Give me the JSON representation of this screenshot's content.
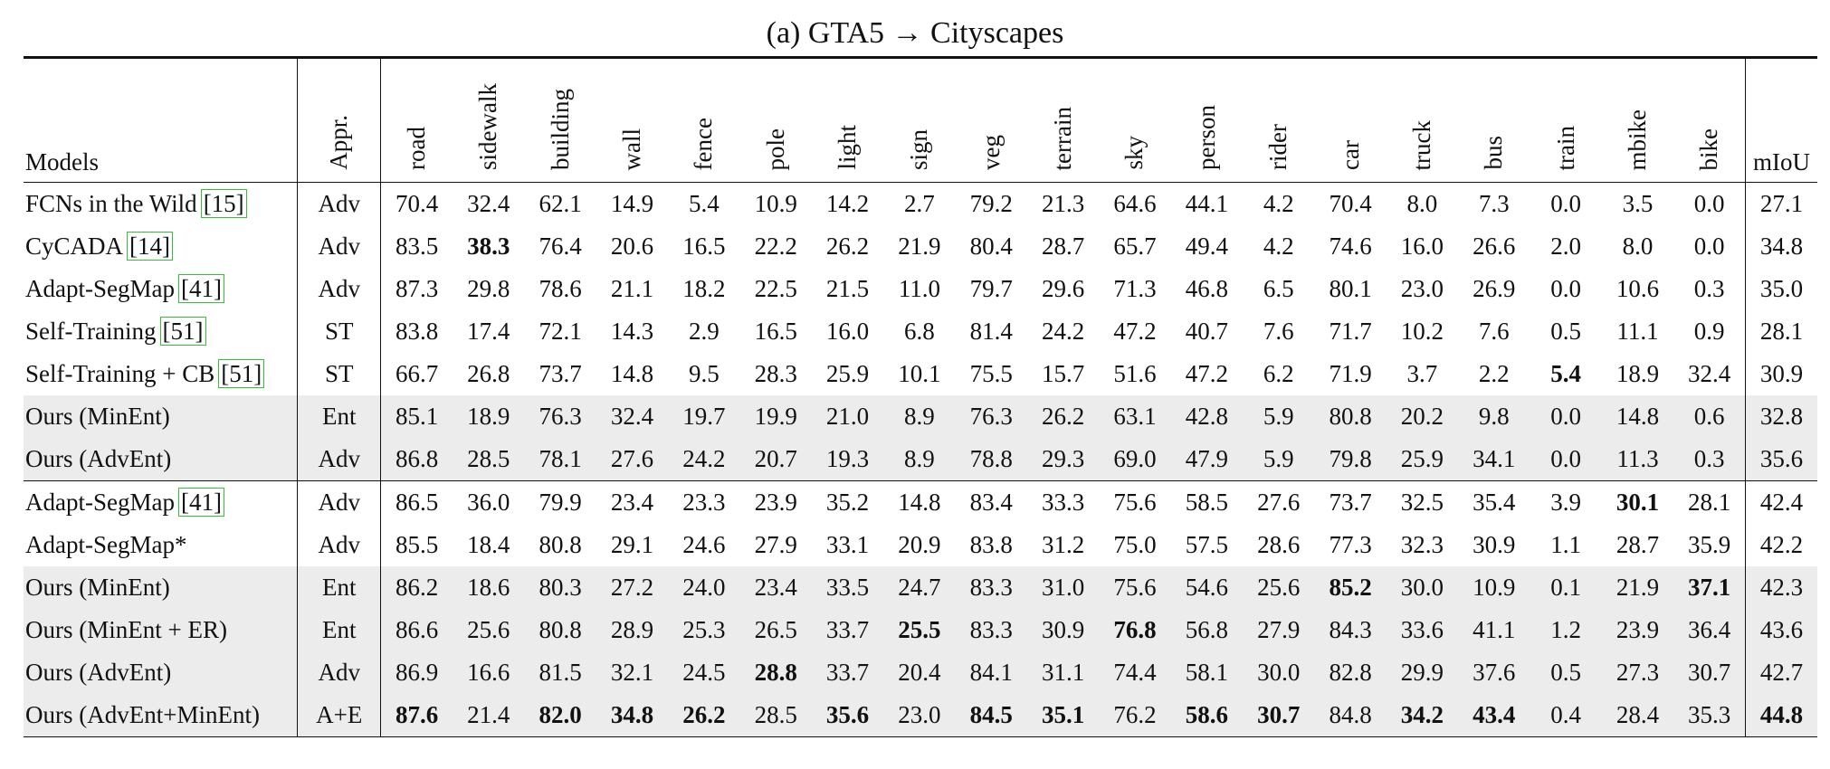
{
  "caption": "(a) GTA5 → Cityscapes",
  "headers": {
    "models": "Models",
    "appr": "Appr.",
    "classes": [
      "road",
      "sidewalk",
      "building",
      "wall",
      "fence",
      "pole",
      "light",
      "sign",
      "veg",
      "terrain",
      "sky",
      "person",
      "rider",
      "car",
      "truck",
      "bus",
      "train",
      "mbike",
      "bike"
    ],
    "miou": "mIoU"
  },
  "rows": [
    {
      "model": "FCNs in the Wild",
      "ref": "[15]",
      "appr": "Adv",
      "values": [
        "70.4",
        "32.4",
        "62.1",
        "14.9",
        "5.4",
        "10.9",
        "14.2",
        "2.7",
        "79.2",
        "21.3",
        "64.6",
        "44.1",
        "4.2",
        "70.4",
        "8.0",
        "7.3",
        "0.0",
        "3.5",
        "0.0"
      ],
      "miou": "27.1",
      "bold": [],
      "shaded": false
    },
    {
      "model": "CyCADA",
      "ref": "[14]",
      "appr": "Adv",
      "values": [
        "83.5",
        "38.3",
        "76.4",
        "20.6",
        "16.5",
        "22.2",
        "26.2",
        "21.9",
        "80.4",
        "28.7",
        "65.7",
        "49.4",
        "4.2",
        "74.6",
        "16.0",
        "26.6",
        "2.0",
        "8.0",
        "0.0"
      ],
      "miou": "34.8",
      "bold": [
        1
      ],
      "shaded": false
    },
    {
      "model": "Adapt-SegMap",
      "ref": "[41]",
      "appr": "Adv",
      "values": [
        "87.3",
        "29.8",
        "78.6",
        "21.1",
        "18.2",
        "22.5",
        "21.5",
        "11.0",
        "79.7",
        "29.6",
        "71.3",
        "46.8",
        "6.5",
        "80.1",
        "23.0",
        "26.9",
        "0.0",
        "10.6",
        "0.3"
      ],
      "miou": "35.0",
      "bold": [],
      "shaded": false
    },
    {
      "model": "Self-Training",
      "ref": "[51]",
      "appr": "ST",
      "values": [
        "83.8",
        "17.4",
        "72.1",
        "14.3",
        "2.9",
        "16.5",
        "16.0",
        "6.8",
        "81.4",
        "24.2",
        "47.2",
        "40.7",
        "7.6",
        "71.7",
        "10.2",
        "7.6",
        "0.5",
        "11.1",
        "0.9"
      ],
      "miou": "28.1",
      "bold": [],
      "shaded": false
    },
    {
      "model": "Self-Training + CB",
      "ref": "[51]",
      "appr": "ST",
      "values": [
        "66.7",
        "26.8",
        "73.7",
        "14.8",
        "9.5",
        "28.3",
        "25.9",
        "10.1",
        "75.5",
        "15.7",
        "51.6",
        "47.2",
        "6.2",
        "71.9",
        "3.7",
        "2.2",
        "5.4",
        "18.9",
        "32.4"
      ],
      "miou": "30.9",
      "bold": [
        16
      ],
      "shaded": false
    },
    {
      "model": "Ours (MinEnt)",
      "ref": "",
      "appr": "Ent",
      "values": [
        "85.1",
        "18.9",
        "76.3",
        "32.4",
        "19.7",
        "19.9",
        "21.0",
        "8.9",
        "76.3",
        "26.2",
        "63.1",
        "42.8",
        "5.9",
        "80.8",
        "20.2",
        "9.8",
        "0.0",
        "14.8",
        "0.6"
      ],
      "miou": "32.8",
      "bold": [],
      "shaded": true
    },
    {
      "model": "Ours (AdvEnt)",
      "ref": "",
      "appr": "Adv",
      "values": [
        "86.8",
        "28.5",
        "78.1",
        "27.6",
        "24.2",
        "20.7",
        "19.3",
        "8.9",
        "78.8",
        "29.3",
        "69.0",
        "47.9",
        "5.9",
        "79.8",
        "25.9",
        "34.1",
        "0.0",
        "11.3",
        "0.3"
      ],
      "miou": "35.6",
      "bold": [],
      "shaded": true
    },
    {
      "model": "Adapt-SegMap",
      "ref": "[41]",
      "appr": "Adv",
      "values": [
        "86.5",
        "36.0",
        "79.9",
        "23.4",
        "23.3",
        "23.9",
        "35.2",
        "14.8",
        "83.4",
        "33.3",
        "75.6",
        "58.5",
        "27.6",
        "73.7",
        "32.5",
        "35.4",
        "3.9",
        "30.1",
        "28.1"
      ],
      "miou": "42.4",
      "bold": [
        17
      ],
      "shaded": false,
      "sep": true
    },
    {
      "model": "Adapt-SegMap*",
      "ref": "",
      "appr": "Adv",
      "values": [
        "85.5",
        "18.4",
        "80.8",
        "29.1",
        "24.6",
        "27.9",
        "33.1",
        "20.9",
        "83.8",
        "31.2",
        "75.0",
        "57.5",
        "28.6",
        "77.3",
        "32.3",
        "30.9",
        "1.1",
        "28.7",
        "35.9"
      ],
      "miou": "42.2",
      "bold": [],
      "shaded": false
    },
    {
      "model": "Ours (MinEnt)",
      "ref": "",
      "appr": "Ent",
      "values": [
        "86.2",
        "18.6",
        "80.3",
        "27.2",
        "24.0",
        "23.4",
        "33.5",
        "24.7",
        "83.3",
        "31.0",
        "75.6",
        "54.6",
        "25.6",
        "85.2",
        "30.0",
        "10.9",
        "0.1",
        "21.9",
        "37.1"
      ],
      "miou": "42.3",
      "bold": [
        13,
        18
      ],
      "shaded": true
    },
    {
      "model": "Ours (MinEnt + ER)",
      "ref": "",
      "appr": "Ent",
      "values": [
        "86.6",
        "25.6",
        "80.8",
        "28.9",
        "25.3",
        "26.5",
        "33.7",
        "25.5",
        "83.3",
        "30.9",
        "76.8",
        "56.8",
        "27.9",
        "84.3",
        "33.6",
        "41.1",
        "1.2",
        "23.9",
        "36.4"
      ],
      "miou": "43.6",
      "bold": [
        7,
        10
      ],
      "shaded": true
    },
    {
      "model": "Ours (AdvEnt)",
      "ref": "",
      "appr": "Adv",
      "values": [
        "86.9",
        "16.6",
        "81.5",
        "32.1",
        "24.5",
        "28.8",
        "33.7",
        "20.4",
        "84.1",
        "31.1",
        "74.4",
        "58.1",
        "30.0",
        "82.8",
        "29.9",
        "37.6",
        "0.5",
        "27.3",
        "30.7"
      ],
      "miou": "42.7",
      "bold": [
        5
      ],
      "shaded": true
    },
    {
      "model": "Ours (AdvEnt+MinEnt)",
      "ref": "",
      "appr": "A+E",
      "values": [
        "87.6",
        "21.4",
        "82.0",
        "34.8",
        "26.2",
        "28.5",
        "35.6",
        "23.0",
        "84.5",
        "35.1",
        "76.2",
        "58.6",
        "30.7",
        "84.8",
        "34.2",
        "43.4",
        "0.4",
        "28.4",
        "35.3"
      ],
      "miou": "44.8",
      "bold": [
        0,
        2,
        3,
        4,
        6,
        8,
        9,
        11,
        12,
        14,
        15
      ],
      "miou_bold": true,
      "shaded": true
    }
  ]
}
